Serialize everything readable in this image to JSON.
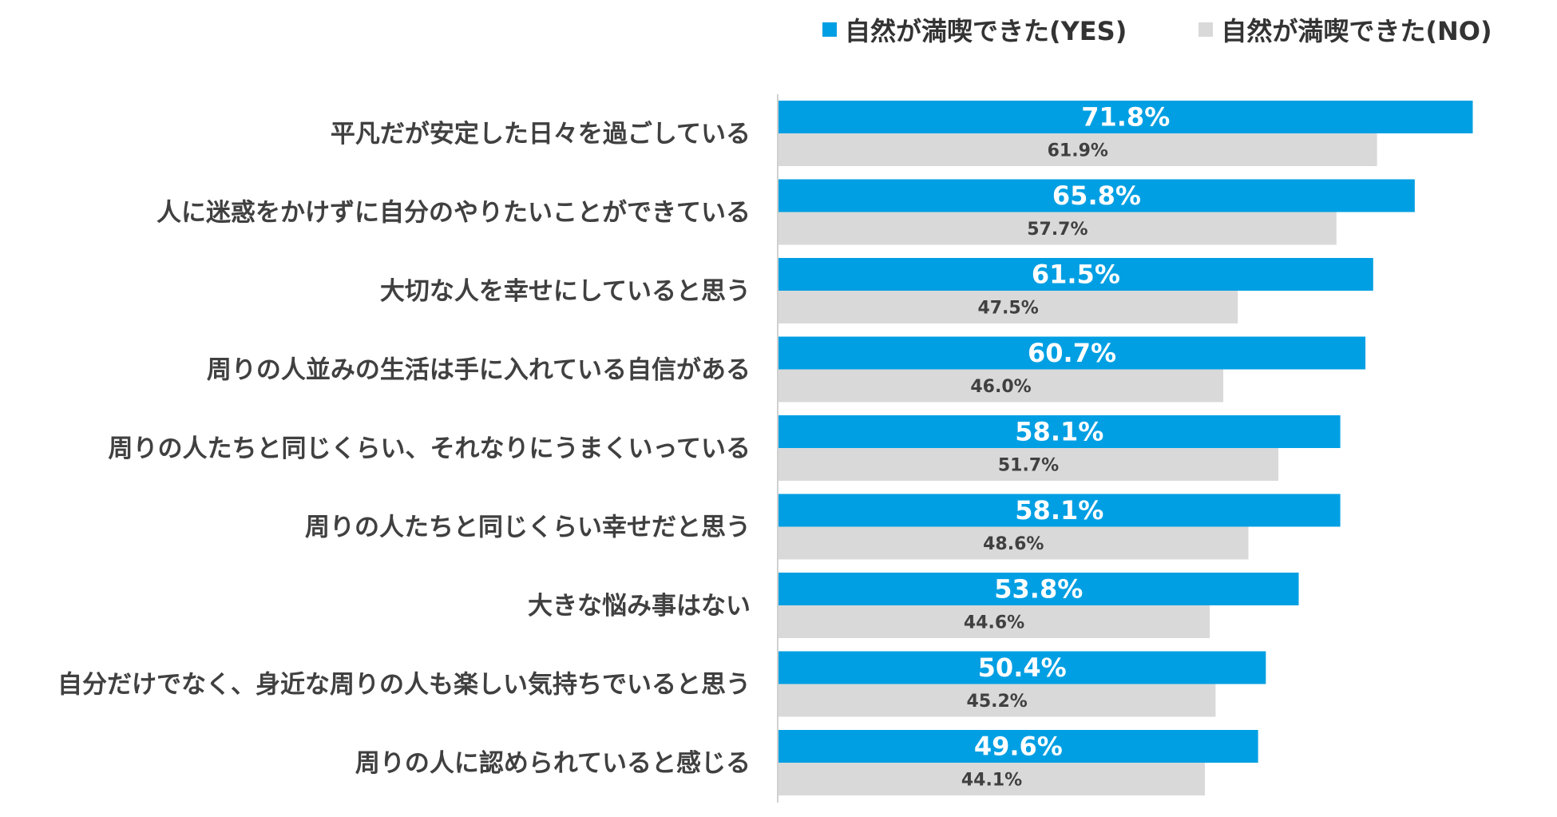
{
  "chart_data": {
    "type": "bar",
    "orientation": "horizontal",
    "title": "",
    "xlabel": "",
    "ylabel": "",
    "xlim": [
      0,
      75
    ],
    "grid": false,
    "legend_position": "top-right",
    "categories": [
      "平凡だが安定した日々を過ごしている",
      "人に迷惑をかけずに自分のやりたいことができている",
      "大切な人を幸せにしていると思う",
      "周りの人並みの生活は手に入れている自信がある",
      "周りの人たちと同じくらい、それなりにうまくいっている",
      "周りの人たちと同じくらい幸せだと思う",
      "大きな悩み事はない",
      "自分だけでなく、身近な周りの人も楽しい気持ちでいると思う",
      "周りの人に認められていると感じる"
    ],
    "series": [
      {
        "name": "自然が満喫できた(YES)",
        "color": "#009FE3",
        "values": [
          71.8,
          65.8,
          61.5,
          60.7,
          58.1,
          58.1,
          53.8,
          50.4,
          49.6
        ],
        "labels": [
          "71.8%",
          "65.8%",
          "61.5%",
          "60.7%",
          "58.1%",
          "58.1%",
          "53.8%",
          "50.4%",
          "49.6%"
        ]
      },
      {
        "name": "自然が満喫できた(NO)",
        "color": "#D9D9D9",
        "values": [
          61.9,
          57.7,
          47.5,
          46.0,
          51.7,
          48.6,
          44.6,
          45.2,
          44.1
        ],
        "labels": [
          "61.9%",
          "57.7%",
          "47.5%",
          "46.0%",
          "51.7%",
          "48.6%",
          "44.6%",
          "45.2%",
          "44.1%"
        ]
      }
    ]
  }
}
